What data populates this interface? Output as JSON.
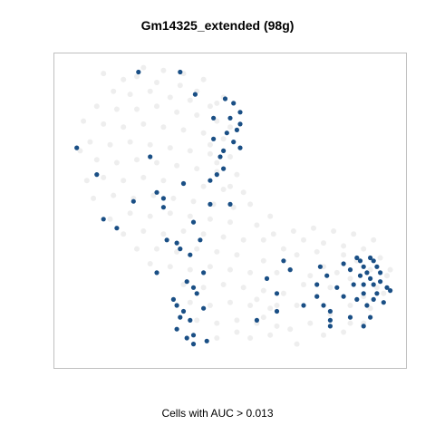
{
  "chart_data": {
    "type": "scatter",
    "title": "Gm14325_extended (98g)",
    "xlabel": "Cells with AUC > 0.013",
    "ylabel": "",
    "xlim": [
      0,
      100
    ],
    "ylim": [
      0,
      100
    ],
    "grid": false,
    "colors": {
      "background_cells": "#d9d9d9",
      "highlighted_cells": "#1a4f85",
      "frame": "#bfbfbf"
    },
    "series": [
      {
        "name": "",
        "role": "background",
        "points": [
          [
            12,
            96
          ],
          [
            18,
            94
          ],
          [
            22,
            95
          ],
          [
            28,
            93
          ],
          [
            35,
            92
          ],
          [
            40,
            90
          ],
          [
            15,
            90
          ],
          [
            20,
            89
          ],
          [
            26,
            90
          ],
          [
            32,
            88
          ],
          [
            38,
            87
          ],
          [
            44,
            85
          ],
          [
            10,
            85
          ],
          [
            16,
            84
          ],
          [
            22,
            84
          ],
          [
            28,
            85
          ],
          [
            34,
            83
          ],
          [
            40,
            82
          ],
          [
            46,
            80
          ],
          [
            12,
            79
          ],
          [
            18,
            78
          ],
          [
            24,
            79
          ],
          [
            30,
            78
          ],
          [
            36,
            77
          ],
          [
            42,
            76
          ],
          [
            48,
            74
          ],
          [
            8,
            73
          ],
          [
            14,
            72
          ],
          [
            20,
            73
          ],
          [
            26,
            72
          ],
          [
            32,
            71
          ],
          [
            38,
            70
          ],
          [
            44,
            69
          ],
          [
            50,
            68
          ],
          [
            10,
            67
          ],
          [
            16,
            66
          ],
          [
            22,
            67
          ],
          [
            28,
            66
          ],
          [
            34,
            65
          ],
          [
            40,
            64
          ],
          [
            46,
            63
          ],
          [
            52,
            62
          ],
          [
            12,
            61
          ],
          [
            18,
            60
          ],
          [
            24,
            61
          ],
          [
            30,
            60
          ],
          [
            36,
            59
          ],
          [
            42,
            58
          ],
          [
            48,
            57
          ],
          [
            54,
            56
          ],
          [
            15,
            55
          ],
          [
            21,
            54
          ],
          [
            27,
            55
          ],
          [
            33,
            54
          ],
          [
            39,
            53
          ],
          [
            45,
            52
          ],
          [
            51,
            51
          ],
          [
            20,
            49
          ],
          [
            26,
            48
          ],
          [
            32,
            49
          ],
          [
            38,
            48
          ],
          [
            44,
            47
          ],
          [
            50,
            46
          ],
          [
            24,
            43
          ],
          [
            30,
            42
          ],
          [
            36,
            43
          ],
          [
            42,
            42
          ],
          [
            48,
            41
          ],
          [
            54,
            40
          ],
          [
            28,
            37
          ],
          [
            34,
            36
          ],
          [
            40,
            37
          ],
          [
            46,
            36
          ],
          [
            52,
            35
          ],
          [
            32,
            31
          ],
          [
            38,
            30
          ],
          [
            44,
            31
          ],
          [
            50,
            30
          ],
          [
            56,
            29
          ],
          [
            36,
            25
          ],
          [
            42,
            24
          ],
          [
            48,
            25
          ],
          [
            54,
            24
          ],
          [
            60,
            23
          ],
          [
            38,
            19
          ],
          [
            44,
            18
          ],
          [
            50,
            19
          ],
          [
            56,
            18
          ],
          [
            62,
            17
          ],
          [
            40,
            13
          ],
          [
            46,
            12
          ],
          [
            52,
            13
          ],
          [
            58,
            12
          ],
          [
            64,
            11
          ],
          [
            66,
            22
          ],
          [
            70,
            18
          ],
          [
            72,
            25
          ],
          [
            76,
            21
          ],
          [
            80,
            24
          ],
          [
            68,
            30
          ],
          [
            74,
            28
          ],
          [
            78,
            31
          ],
          [
            82,
            29
          ],
          [
            86,
            27
          ],
          [
            60,
            33
          ],
          [
            64,
            29
          ],
          [
            70,
            35
          ],
          [
            76,
            36
          ],
          [
            84,
            35
          ],
          [
            88,
            33
          ],
          [
            92,
            30
          ],
          [
            94,
            24
          ],
          [
            90,
            21
          ],
          [
            86,
            18
          ],
          [
            80,
            15
          ],
          [
            74,
            12
          ],
          [
            68,
            10
          ],
          [
            62,
            8
          ],
          [
            56,
            7
          ],
          [
            60,
            40
          ],
          [
            66,
            37
          ],
          [
            72,
            40
          ],
          [
            78,
            39
          ],
          [
            84,
            38
          ],
          [
            90,
            37
          ],
          [
            95,
            34
          ],
          [
            97,
            28
          ],
          [
            92,
            17
          ],
          [
            86,
            12
          ],
          [
            30,
            97
          ],
          [
            24,
            98
          ],
          [
            48,
            88
          ],
          [
            6,
            80
          ],
          [
            5,
            70
          ],
          [
            7,
            60
          ],
          [
            9,
            54
          ],
          [
            14,
            47
          ],
          [
            18,
            42
          ],
          [
            22,
            37
          ],
          [
            26,
            32
          ],
          [
            58,
            45
          ],
          [
            62,
            48
          ],
          [
            56,
            52
          ],
          [
            50,
            58
          ],
          [
            46,
            66
          ],
          [
            44,
            72
          ],
          [
            50,
            78
          ],
          [
            46,
            86
          ],
          [
            36,
            96
          ],
          [
            42,
            94
          ],
          [
            60,
            14
          ],
          [
            64,
            18
          ],
          [
            58,
            20
          ],
          [
            52,
            9
          ],
          [
            46,
            7
          ],
          [
            70,
            5
          ],
          [
            78,
            8
          ],
          [
            84,
            9
          ],
          [
            90,
            12
          ],
          [
            96,
            22
          ],
          [
            98,
            30
          ],
          [
            93,
            40
          ],
          [
            87,
            42
          ],
          [
            81,
            43
          ],
          [
            75,
            44
          ],
          [
            69,
            43
          ],
          [
            63,
            42
          ]
        ]
      },
      {
        "name": "",
        "role": "highlighted",
        "points": [
          [
            22.5,
            96.5
          ],
          [
            35,
            96.5
          ],
          [
            39.5,
            89
          ],
          [
            48.5,
            87.5
          ],
          [
            51,
            86
          ],
          [
            53,
            83
          ],
          [
            50,
            81
          ],
          [
            45,
            81
          ],
          [
            53,
            79
          ],
          [
            52,
            77
          ],
          [
            49,
            76
          ],
          [
            45,
            74
          ],
          [
            51,
            73
          ],
          [
            53,
            71
          ],
          [
            48,
            70
          ],
          [
            47,
            68
          ],
          [
            4,
            71
          ],
          [
            26,
            68
          ],
          [
            48,
            64
          ],
          [
            46,
            62
          ],
          [
            10,
            62
          ],
          [
            44,
            60
          ],
          [
            36,
            59
          ],
          [
            28,
            56
          ],
          [
            30,
            54
          ],
          [
            44,
            52
          ],
          [
            50,
            52
          ],
          [
            21,
            53
          ],
          [
            30,
            51
          ],
          [
            12,
            47
          ],
          [
            16,
            44
          ],
          [
            39,
            46
          ],
          [
            31,
            40
          ],
          [
            34,
            39
          ],
          [
            41,
            40
          ],
          [
            35,
            37
          ],
          [
            38,
            35
          ],
          [
            28,
            29
          ],
          [
            42,
            29
          ],
          [
            37,
            26
          ],
          [
            39,
            24
          ],
          [
            40,
            22
          ],
          [
            34,
            18
          ],
          [
            36,
            16
          ],
          [
            38,
            13
          ],
          [
            42,
            17
          ],
          [
            34,
            10
          ],
          [
            39,
            8
          ],
          [
            37,
            7
          ],
          [
            39,
            5
          ],
          [
            43,
            6
          ],
          [
            33,
            20
          ],
          [
            35,
            14
          ],
          [
            64,
            22
          ],
          [
            68,
            30
          ],
          [
            66,
            33
          ],
          [
            77,
            31
          ],
          [
            79,
            28
          ],
          [
            76,
            25
          ],
          [
            76,
            21
          ],
          [
            72,
            18
          ],
          [
            78,
            18
          ],
          [
            80,
            16
          ],
          [
            80,
            13
          ],
          [
            80,
            11
          ],
          [
            84,
            32
          ],
          [
            86,
            30
          ],
          [
            88,
            34
          ],
          [
            89,
            33
          ],
          [
            90,
            31
          ],
          [
            91,
            29
          ],
          [
            92,
            34
          ],
          [
            93,
            33
          ],
          [
            94,
            31
          ],
          [
            95,
            29
          ],
          [
            92,
            27
          ],
          [
            89,
            28
          ],
          [
            90,
            25
          ],
          [
            93,
            25
          ],
          [
            95,
            26
          ],
          [
            97,
            24
          ],
          [
            94,
            22
          ],
          [
            90,
            22
          ],
          [
            87,
            25
          ],
          [
            88,
            20
          ],
          [
            91,
            18
          ],
          [
            93,
            20
          ],
          [
            96,
            19
          ],
          [
            98,
            23
          ],
          [
            92,
            14
          ],
          [
            90,
            11
          ],
          [
            86,
            14
          ],
          [
            84,
            21
          ],
          [
            82,
            24
          ],
          [
            61,
            27
          ],
          [
            58,
            13
          ],
          [
            64,
            16
          ]
        ]
      }
    ]
  }
}
